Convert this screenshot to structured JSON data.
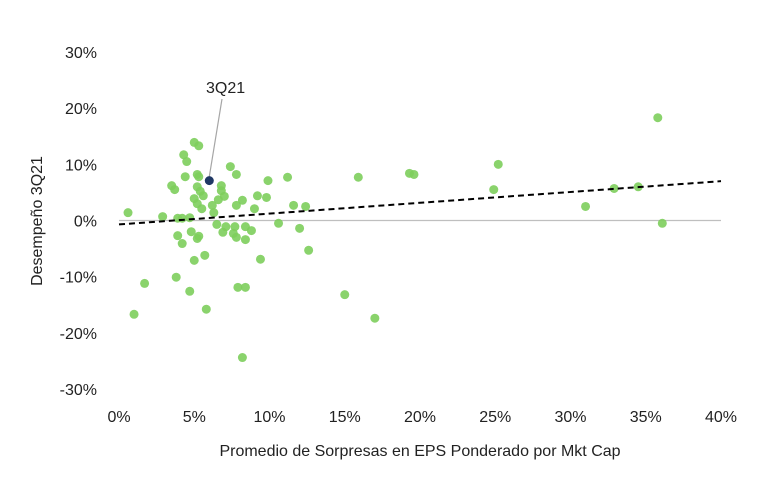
{
  "chart_data": {
    "type": "scatter",
    "title": "",
    "xlabel": "Promedio de Sorpresas en EPS Ponderado por Mkt Cap",
    "ylabel": "Desempeño 3Q21",
    "xlim": [
      0,
      40
    ],
    "ylim": [
      -30,
      30
    ],
    "x_ticks": [
      "0%",
      "5%",
      "10%",
      "15%",
      "20%",
      "25%",
      "30%",
      "35%",
      "40%"
    ],
    "y_ticks": [
      "30%",
      "20%",
      "10%",
      "0%",
      "-10%",
      "-20%",
      "-30%"
    ],
    "grid": false,
    "colors": {
      "points": "#7dce5c",
      "highlight": "#1f3864",
      "trend": "#000000",
      "zero_line": "#bfbfbf"
    },
    "points": [
      [
        5.0,
        13.9
      ],
      [
        5.3,
        13.3
      ],
      [
        4.3,
        11.7
      ],
      [
        4.5,
        10.5
      ],
      [
        7.4,
        9.6
      ],
      [
        7.8,
        8.2
      ],
      [
        4.4,
        7.8
      ],
      [
        5.2,
        8.2
      ],
      [
        5.3,
        7.8
      ],
      [
        3.5,
        6.2
      ],
      [
        3.7,
        5.5
      ],
      [
        5.2,
        6.0
      ],
      [
        5.4,
        5.2
      ],
      [
        5.6,
        4.4
      ],
      [
        6.8,
        6.2
      ],
      [
        6.8,
        5.3
      ],
      [
        7.0,
        4.3
      ],
      [
        6.6,
        3.7
      ],
      [
        5.0,
        3.9
      ],
      [
        5.2,
        3.0
      ],
      [
        5.5,
        2.1
      ],
      [
        6.2,
        2.7
      ],
      [
        6.3,
        1.4
      ],
      [
        8.2,
        3.6
      ],
      [
        7.8,
        2.7
      ],
      [
        9.2,
        4.4
      ],
      [
        9.8,
        4.1
      ],
      [
        9.0,
        2.1
      ],
      [
        9.9,
        7.1
      ],
      [
        11.2,
        7.7
      ],
      [
        11.6,
        2.7
      ],
      [
        0.6,
        1.4
      ],
      [
        2.9,
        0.7
      ],
      [
        3.9,
        0.4
      ],
      [
        4.2,
        0.4
      ],
      [
        4.7,
        0.5
      ],
      [
        6.5,
        -0.7
      ],
      [
        7.1,
        -1.1
      ],
      [
        7.7,
        -1.1
      ],
      [
        8.4,
        -1.1
      ],
      [
        6.9,
        -2.1
      ],
      [
        7.6,
        -2.3
      ],
      [
        7.8,
        -3.0
      ],
      [
        8.8,
        -1.8
      ],
      [
        8.4,
        -3.4
      ],
      [
        10.6,
        -0.5
      ],
      [
        12.0,
        -1.4
      ],
      [
        3.9,
        -2.7
      ],
      [
        4.8,
        -2.0
      ],
      [
        4.2,
        -4.1
      ],
      [
        5.3,
        -2.8
      ],
      [
        5.2,
        -3.2
      ],
      [
        5.7,
        -6.2
      ],
      [
        5.0,
        -7.1
      ],
      [
        9.4,
        -6.9
      ],
      [
        1.7,
        -11.2
      ],
      [
        3.8,
        -10.1
      ],
      [
        4.7,
        -12.6
      ],
      [
        7.9,
        -11.9
      ],
      [
        8.4,
        -11.9
      ],
      [
        1.0,
        -16.7
      ],
      [
        5.8,
        -15.8
      ],
      [
        8.2,
        -24.4
      ],
      [
        19.3,
        8.4
      ],
      [
        19.6,
        8.2
      ],
      [
        15.9,
        7.7
      ],
      [
        25.2,
        10.0
      ],
      [
        24.9,
        5.5
      ],
      [
        31.0,
        2.5
      ],
      [
        32.9,
        5.7
      ],
      [
        34.5,
        6.0
      ],
      [
        35.8,
        18.3
      ],
      [
        36.1,
        -0.5
      ],
      [
        12.6,
        -5.3
      ],
      [
        15.0,
        -13.2
      ],
      [
        17.0,
        -17.4
      ],
      [
        12.4,
        2.5
      ]
    ],
    "highlight": {
      "label": "3Q21",
      "x": 6.0,
      "y": 7.1
    },
    "trendline": {
      "style": "dashed",
      "x": [
        0,
        40
      ],
      "y": [
        -0.7,
        7.0
      ]
    }
  }
}
